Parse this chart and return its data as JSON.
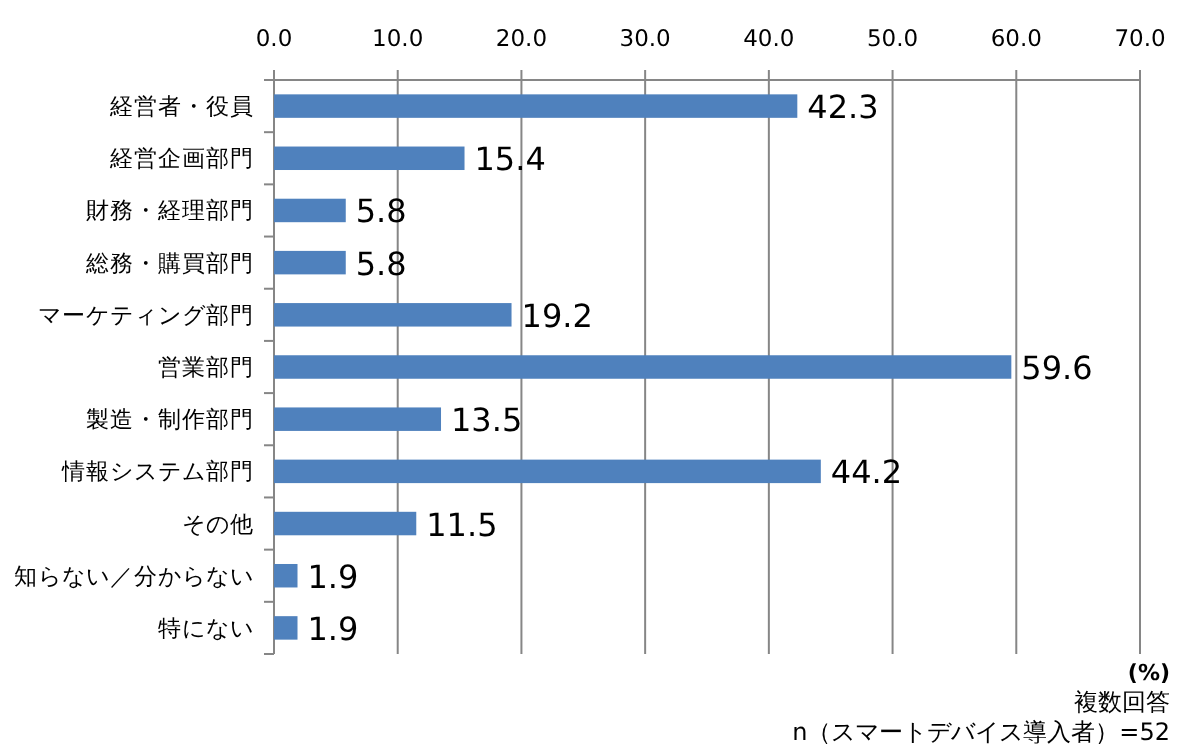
{
  "chart_data": {
    "type": "bar",
    "orientation": "horizontal",
    "categories": [
      "経営者・役員",
      "経営企画部門",
      "財務・経理部門",
      "総務・購買部門",
      "マーケティング部門",
      "営業部門",
      "製造・制作部門",
      "情報システム部門",
      "その他",
      "知らない／分からない",
      "特にない"
    ],
    "values": [
      42.3,
      15.4,
      5.8,
      5.8,
      19.2,
      59.6,
      13.5,
      44.2,
      11.5,
      1.9,
      1.9
    ],
    "color": "#4f81bd",
    "xlim": [
      0,
      70
    ],
    "xticks": [
      {
        "value": 0,
        "label": "0.0"
      },
      {
        "value": 10,
        "label": "10.0"
      },
      {
        "value": 20,
        "label": "20.0"
      },
      {
        "value": 30,
        "label": "30.0"
      },
      {
        "value": 40,
        "label": "40.0"
      },
      {
        "value": 50,
        "label": "50.0"
      },
      {
        "value": 60,
        "label": "60.0"
      },
      {
        "value": 70,
        "label": "70.0"
      }
    ],
    "grid": "x",
    "data_labels": true,
    "annotations": [
      "(%)",
      "複数回答",
      "n（スマートデバイス導入者）=52"
    ]
  }
}
